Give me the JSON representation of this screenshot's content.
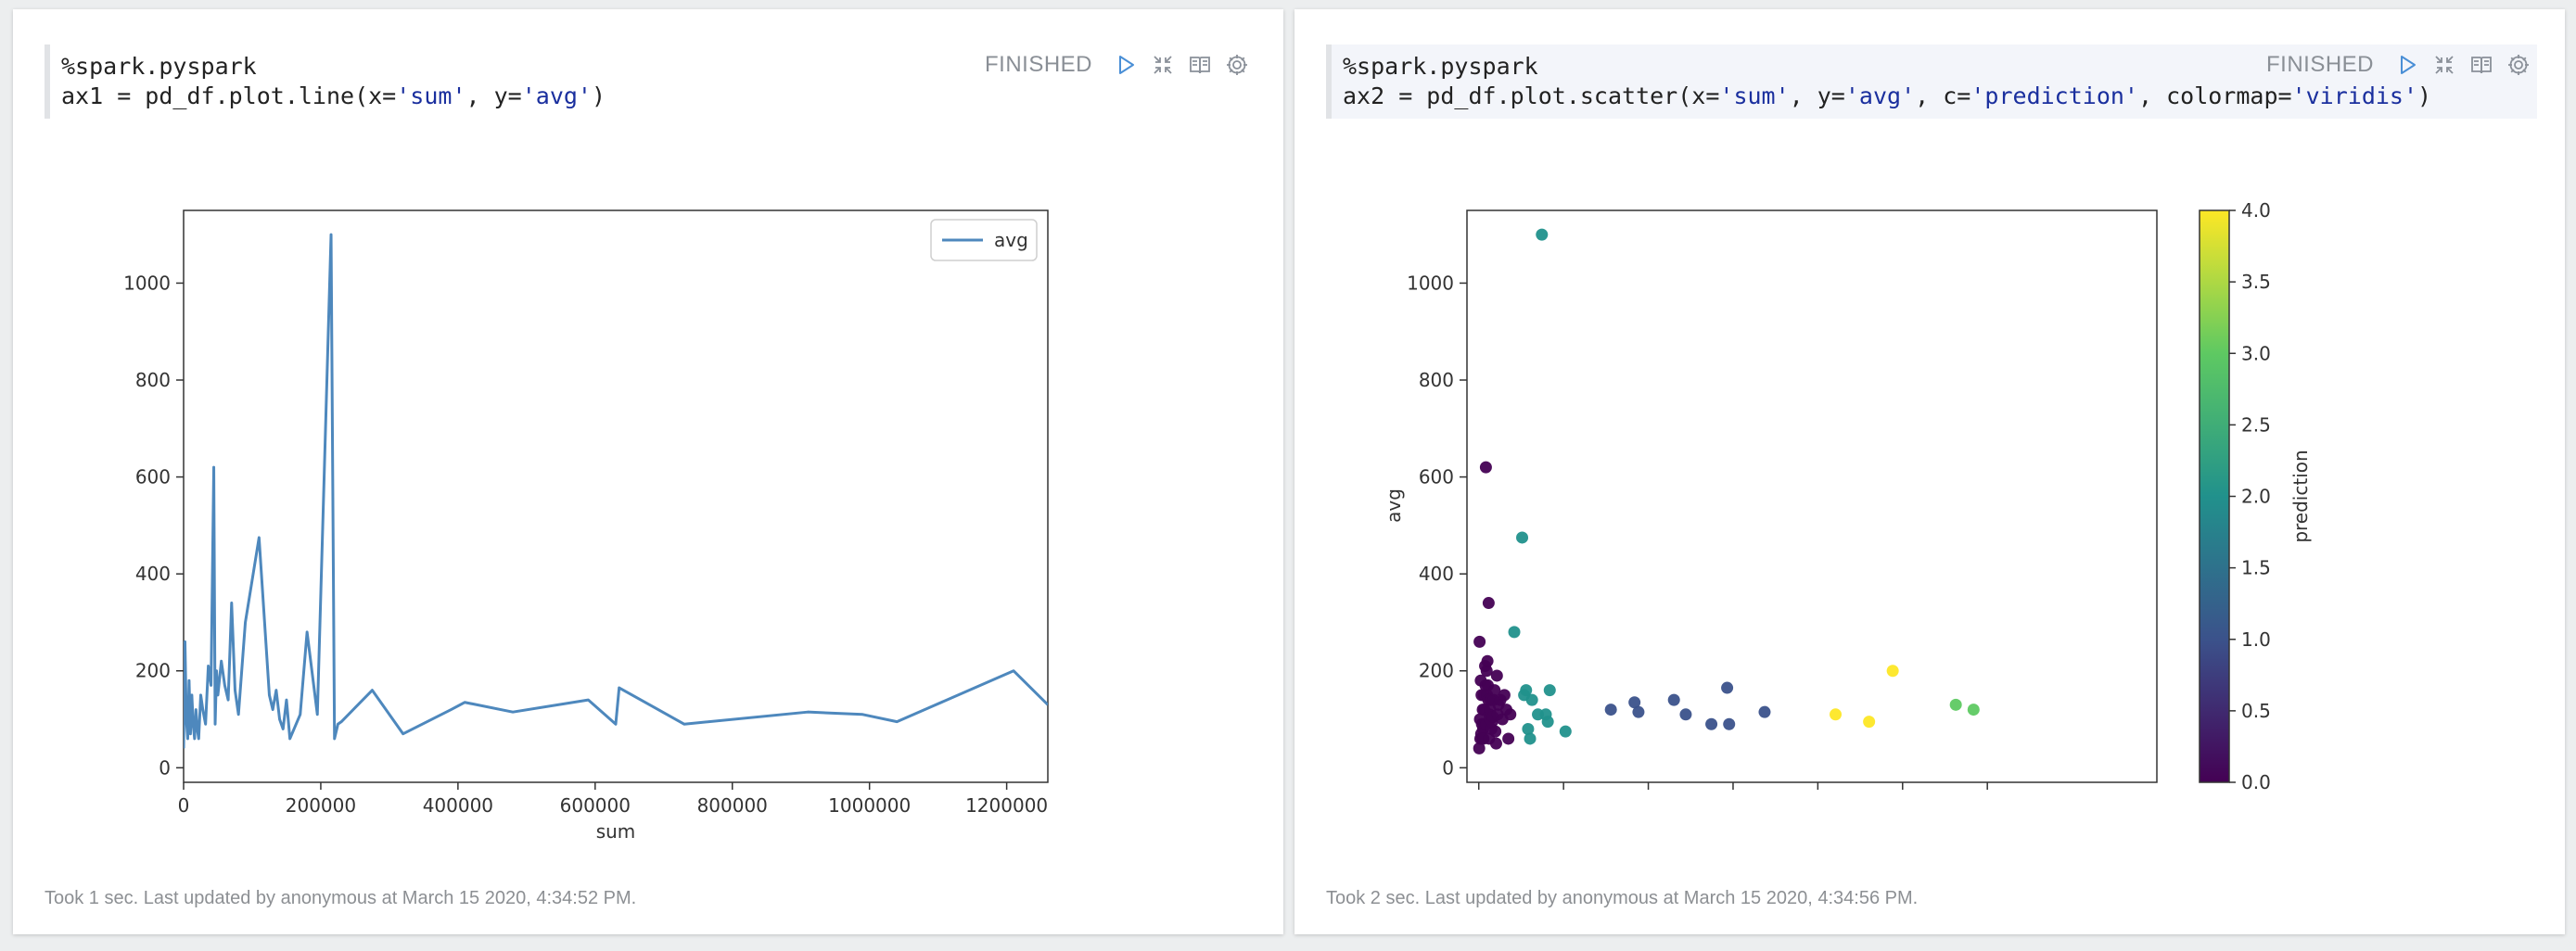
{
  "cells": [
    {
      "code_lines": [
        [
          {
            "t": "%spark.pyspark",
            "s": false
          }
        ],
        [
          {
            "t": "ax1 = pd_df.plot.line(x=",
            "s": false
          },
          {
            "t": "'sum'",
            "s": true
          },
          {
            "t": ", y=",
            "s": false
          },
          {
            "t": "'avg'",
            "s": true
          },
          {
            "t": ")",
            "s": false
          }
        ]
      ],
      "status": "FINISHED",
      "footer": "Took 1 sec. Last updated by anonymous at March 15 2020, 4:34:52 PM."
    },
    {
      "code_lines": [
        [
          {
            "t": "%spark.pyspark",
            "s": false
          }
        ],
        [
          {
            "t": "ax2 = pd_df.plot.scatter(x=",
            "s": false
          },
          {
            "t": "'sum'",
            "s": true
          },
          {
            "t": ", y=",
            "s": false
          },
          {
            "t": "'avg'",
            "s": true
          },
          {
            "t": ", c=",
            "s": false
          },
          {
            "t": "'prediction'",
            "s": true
          },
          {
            "t": ", colormap=",
            "s": false
          },
          {
            "t": "'viridis'",
            "s": true
          },
          {
            "t": ")",
            "s": false
          }
        ]
      ],
      "status": "FINISHED",
      "footer": "Took 2 sec. Last updated by anonymous at March 15 2020, 4:34:56 PM."
    }
  ],
  "toolbar_icons": [
    "run-icon",
    "collapse-icon",
    "book-icon",
    "gear-icon"
  ],
  "chart_data": [
    {
      "type": "line",
      "title": "",
      "xlabel": "sum",
      "ylabel": "",
      "xlim": [
        0,
        1260000
      ],
      "ylim": [
        -30,
        1150
      ],
      "xticks": [
        0,
        200000,
        400000,
        600000,
        800000,
        1000000,
        1200000
      ],
      "yticks": [
        0,
        200,
        400,
        600,
        800,
        1000
      ],
      "legend": "top-right",
      "color": "#4e88bd",
      "series": [
        {
          "name": "avg",
          "x": [
            0,
            2000,
            4000,
            6000,
            8000,
            10000,
            12000,
            14000,
            16000,
            18000,
            20000,
            22000,
            25000,
            28000,
            32000,
            36000,
            40000,
            44000,
            46000,
            48000,
            50000,
            55000,
            60000,
            65000,
            70000,
            75000,
            80000,
            90000,
            110000,
            125000,
            130000,
            135000,
            140000,
            145000,
            150000,
            155000,
            170000,
            180000,
            195000,
            215000,
            220000,
            225000,
            230000,
            275000,
            320000,
            390000,
            410000,
            480000,
            590000,
            630000,
            635000,
            730000,
            910000,
            990000,
            1040000,
            1210000,
            1260000
          ],
          "y": [
            40,
            260,
            100,
            60,
            180,
            70,
            150,
            90,
            60,
            120,
            80,
            60,
            150,
            120,
            90,
            210,
            170,
            620,
            90,
            200,
            150,
            220,
            170,
            140,
            340,
            160,
            110,
            300,
            475,
            150,
            120,
            160,
            100,
            80,
            140,
            60,
            110,
            280,
            110,
            1100,
            60,
            90,
            95,
            160,
            70,
            120,
            135,
            115,
            140,
            90,
            165,
            90,
            115,
            110,
            95,
            200,
            130
          ]
        }
      ]
    },
    {
      "type": "scatter",
      "title": "",
      "xlabel": "",
      "ylabel": "avg",
      "xlim": [
        -30000,
        1720000
      ],
      "ylim": [
        -30,
        1150
      ],
      "yticks": [
        0,
        200,
        400,
        600,
        800,
        1000
      ],
      "colorbar": {
        "label": "prediction",
        "min": 0.0,
        "max": 4.0,
        "ticks": [
          "0.0",
          "0.5",
          "1.0",
          "1.5",
          "2.0",
          "2.5",
          "3.0",
          "3.5",
          "4.0"
        ]
      },
      "colormap": [
        "#440154",
        "#3b528b",
        "#21918c",
        "#5ec962",
        "#fde725"
      ],
      "points": {
        "x": [
          1000,
          2000,
          3000,
          4000,
          5000,
          6000,
          7000,
          8000,
          9000,
          10000,
          11000,
          12000,
          13000,
          14000,
          15000,
          16000,
          17000,
          18000,
          19000,
          20000,
          21000,
          22000,
          23000,
          24000,
          25000,
          26000,
          27000,
          28000,
          29000,
          30000,
          32000,
          34000,
          36000,
          38000,
          40000,
          42000,
          44000,
          46000,
          48000,
          50000,
          55000,
          60000,
          65000,
          70000,
          75000,
          80000,
          90000,
          110000,
          115000,
          120000,
          125000,
          130000,
          135000,
          150000,
          160000,
          170000,
          175000,
          180000,
          220000,
          335000,
          395000,
          405000,
          495000,
          525000,
          590000,
          630000,
          635000,
          725000,
          905000,
          990000,
          1050000,
          1210000,
          1255000
        ],
        "y": [
          40,
          260,
          100,
          60,
          180,
          70,
          150,
          90,
          60,
          120,
          80,
          60,
          150,
          120,
          90,
          210,
          170,
          620,
          90,
          200,
          150,
          220,
          170,
          140,
          340,
          60,
          110,
          100,
          120,
          140,
          80,
          95,
          105,
          140,
          160,
          75,
          50,
          190,
          110,
          130,
          140,
          100,
          150,
          120,
          60,
          110,
          280,
          475,
          150,
          160,
          80,
          60,
          140,
          110,
          1100,
          110,
          95,
          160,
          75,
          120,
          135,
          115,
          140,
          110,
          90,
          165,
          90,
          115,
          110,
          95,
          200,
          130,
          120
        ],
        "c": [
          0,
          0,
          0,
          0,
          0,
          0,
          0,
          0,
          0,
          0,
          0,
          0,
          0,
          0,
          0,
          0,
          0,
          0,
          0,
          0,
          0,
          0,
          0,
          0,
          0,
          0,
          0,
          0,
          0,
          0,
          0,
          0,
          0,
          0,
          0,
          0,
          0,
          0,
          0,
          0,
          0,
          0,
          0,
          0,
          0,
          0,
          2,
          2,
          2,
          2,
          2,
          2,
          2,
          2,
          2,
          2,
          2,
          2,
          2,
          1,
          1,
          1,
          1,
          1,
          1,
          1,
          1,
          1,
          4,
          4,
          4,
          3,
          3
        ]
      }
    }
  ]
}
